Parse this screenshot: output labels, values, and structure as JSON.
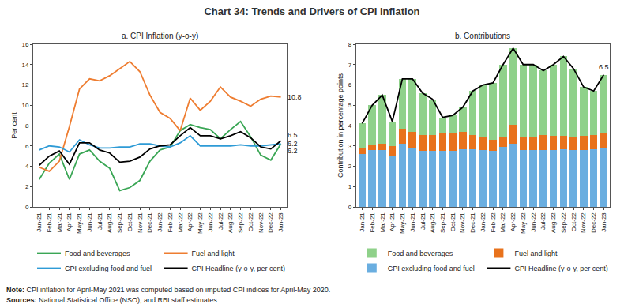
{
  "title": "Chart 34: Trends and Drivers of CPI Inflation",
  "note": "Note: CPI inflation for April-May 2021 was computed based on imputed CPI indices for April-May 2020.",
  "sources": "Sources: National Statistical Office (NSO); and RBI staff estimates.",
  "chart_data": [
    {
      "type": "line",
      "title": "a. CPI Inflation (y-o-y)",
      "y_label": "Per cent",
      "categories": [
        "Jan-21",
        "Feb-21",
        "Mar-21",
        "Apr-21",
        "May-21",
        "Jun-21",
        "Jul-21",
        "Aug-21",
        "Sep-21",
        "Oct-21",
        "Nov-21",
        "Dec-21",
        "Jan-22",
        "Feb-22",
        "Mar-22",
        "Apr-22",
        "May-22",
        "Jun-22",
        "Jul-22",
        "Aug-22",
        "Sep-22",
        "Oct-22",
        "Nov-22",
        "Dec-22",
        "Jan-23"
      ],
      "ylim": [
        0,
        16
      ],
      "yticks": [
        0,
        2,
        4,
        6,
        8,
        10,
        12,
        14,
        16
      ],
      "grid": false,
      "series": [
        {
          "name": "Food and beverages",
          "color": "#3aa655",
          "values": [
            2.7,
            4.3,
            5.2,
            2.7,
            5.2,
            5.6,
            4.5,
            3.8,
            1.6,
            1.9,
            2.6,
            4.5,
            5.6,
            5.9,
            7.5,
            8.1,
            7.8,
            7.6,
            6.7,
            7.6,
            8.4,
            6.9,
            5.1,
            4.6,
            6.2
          ]
        },
        {
          "name": "Fuel and light",
          "color": "#ee7d31",
          "values": [
            3.9,
            3.5,
            4.5,
            7.9,
            11.6,
            12.6,
            12.4,
            12.9,
            13.6,
            14.3,
            13.3,
            11.0,
            9.3,
            8.7,
            7.5,
            10.7,
            9.5,
            10.4,
            11.8,
            10.8,
            10.4,
            9.9,
            10.6,
            10.9,
            10.8
          ]
        },
        {
          "name": "CPI excluding food and fuel",
          "color": "#2e9bd6",
          "values": [
            5.6,
            6.0,
            5.9,
            5.4,
            6.6,
            6.1,
            5.8,
            5.8,
            5.9,
            5.9,
            6.2,
            6.2,
            6.0,
            5.9,
            6.3,
            7.0,
            6.0,
            6.0,
            6.0,
            6.0,
            6.1,
            6.0,
            6.0,
            6.1,
            6.2
          ]
        },
        {
          "name": "CPI Headline (y-o-y, per cent)",
          "color": "#000000",
          "values": [
            4.1,
            5.0,
            5.5,
            4.2,
            6.3,
            6.3,
            5.6,
            5.3,
            4.4,
            4.5,
            4.9,
            5.7,
            6.0,
            6.1,
            7.0,
            7.8,
            7.0,
            7.0,
            6.7,
            7.0,
            7.4,
            6.8,
            5.9,
            5.7,
            6.5
          ]
        }
      ],
      "annotations": [
        {
          "text": "10.8",
          "series": "Fuel and light"
        },
        {
          "text": "6.5",
          "series": "CPI Headline (y-o-y, per cent)"
        },
        {
          "text": "6.2",
          "series": "CPI excluding food and fuel"
        },
        {
          "text": "6.2",
          "series": "Food and beverages"
        }
      ]
    },
    {
      "type": "bar",
      "title": "b. Contributions",
      "y_label": "Contribution in percentage points",
      "stacked": true,
      "categories": [
        "Jan-21",
        "Feb-21",
        "Mar-21",
        "Apr-21",
        "May-21",
        "Jun-21",
        "Jul-21",
        "Aug-21",
        "Sep-21",
        "Oct-21",
        "Nov-21",
        "Dec-21",
        "Jan-22",
        "Feb-22",
        "Mar-22",
        "Apr-22",
        "May-22",
        "Jun-22",
        "Jul-22",
        "Aug-22",
        "Sep-22",
        "Oct-22",
        "Nov-22",
        "Dec-22",
        "Jan-23"
      ],
      "ylim": [
        0,
        8
      ],
      "yticks": [
        0,
        1,
        2,
        3,
        4,
        5,
        6,
        7,
        8
      ],
      "grid": false,
      "series": [
        {
          "name": "Food and beverages",
          "color": "#8fd18a",
          "type": "bar",
          "values": [
            1.2,
            1.95,
            2.4,
            1.2,
            2.45,
            2.6,
            2.05,
            1.75,
            0.8,
            0.85,
            1.2,
            2.15,
            2.6,
            2.8,
            3.55,
            3.75,
            3.55,
            3.55,
            3.15,
            3.5,
            3.9,
            3.35,
            2.4,
            2.15,
            2.9
          ]
        },
        {
          "name": "Fuel and light",
          "color": "#e8721c",
          "type": "bar",
          "values": [
            0.3,
            0.25,
            0.3,
            0.5,
            0.75,
            0.8,
            0.8,
            0.8,
            0.85,
            0.9,
            0.85,
            0.7,
            0.6,
            0.55,
            0.5,
            0.95,
            0.65,
            0.65,
            0.75,
            0.7,
            0.65,
            0.65,
            0.7,
            0.7,
            0.7
          ]
        },
        {
          "name": "CPI excluding food and fuel",
          "color": "#6aaee0",
          "type": "bar",
          "values": [
            2.6,
            2.8,
            2.8,
            2.5,
            3.1,
            2.9,
            2.75,
            2.75,
            2.75,
            2.75,
            2.85,
            2.85,
            2.8,
            2.75,
            2.95,
            3.1,
            2.8,
            2.8,
            2.8,
            2.8,
            2.85,
            2.8,
            2.8,
            2.85,
            2.9
          ]
        },
        {
          "name": "CPI Headline (y-o-y, per cent)",
          "color": "#000000",
          "type": "line",
          "values": [
            4.1,
            5.0,
            5.5,
            4.2,
            6.3,
            6.3,
            5.6,
            5.3,
            4.4,
            4.5,
            4.9,
            5.7,
            6.0,
            6.1,
            7.0,
            7.8,
            7.0,
            7.0,
            6.7,
            7.0,
            7.4,
            6.8,
            5.9,
            5.7,
            6.5
          ]
        }
      ],
      "annotations": [
        {
          "text": "6.5",
          "series": "CPI Headline (y-o-y, per cent)"
        }
      ]
    }
  ]
}
